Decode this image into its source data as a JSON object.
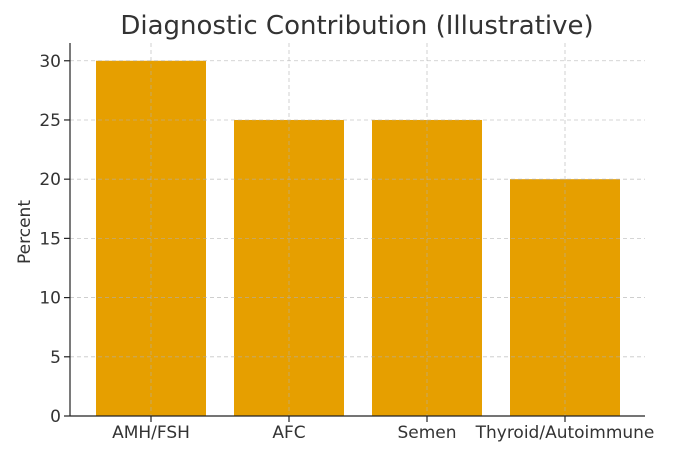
{
  "chart_data": {
    "type": "bar",
    "title": "Diagnostic Contribution (Illustrative)",
    "xlabel": "",
    "ylabel": "Percent",
    "categories": [
      "AMH/FSH",
      "AFC",
      "Semen",
      "Thyroid/Autoimmune"
    ],
    "values": [
      30,
      25,
      25,
      20
    ],
    "ylim": [
      0,
      31.5
    ],
    "yticks": [
      0,
      5,
      10,
      15,
      20,
      25,
      30
    ],
    "ytick_labels": [
      "0",
      "5",
      "10",
      "15",
      "20",
      "25",
      "30"
    ],
    "grid": true,
    "bar_color": "#E69F00"
  }
}
